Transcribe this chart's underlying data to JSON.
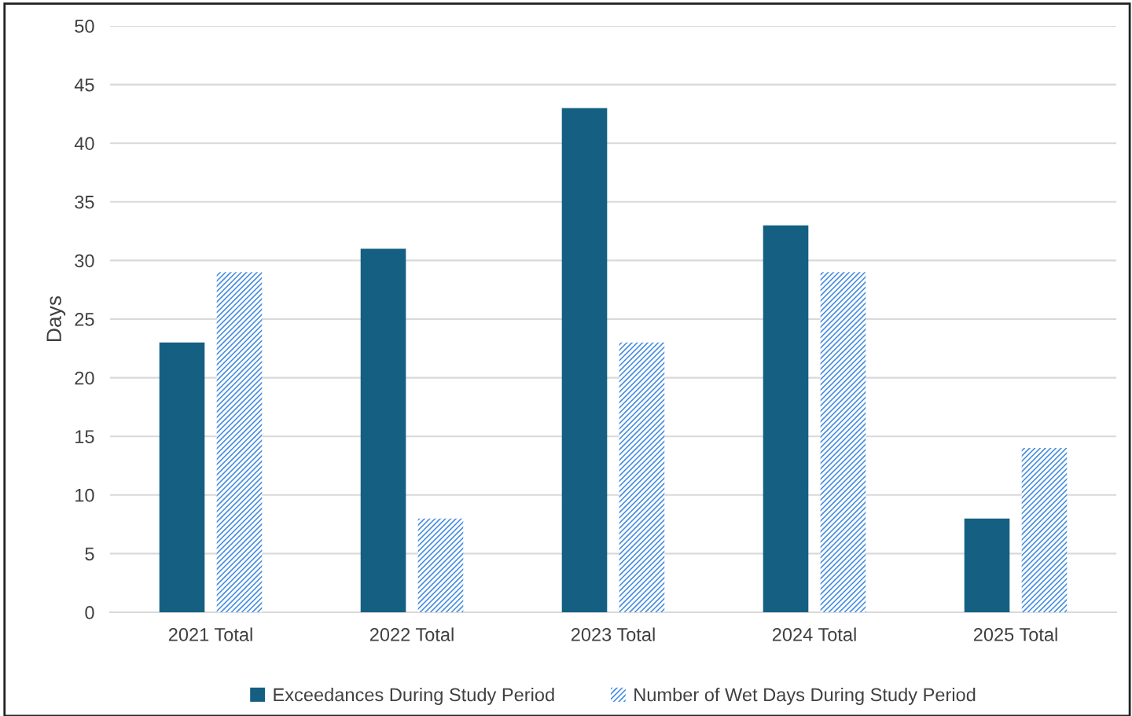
{
  "chart_data": {
    "type": "bar",
    "ylabel": "Days",
    "categories": [
      "2021 Total",
      "2022 Total",
      "2023 Total",
      "2024 Total",
      "2025 Total"
    ],
    "series": [
      {
        "name": "Exceedances During Study Period",
        "color": "#156082",
        "values": [
          23,
          31,
          43,
          33,
          8
        ]
      },
      {
        "name": "Number of Wet Days During Study Period",
        "color": "#4a8fe0",
        "values": [
          29,
          8,
          23,
          29,
          14
        ]
      }
    ],
    "ylim": [
      0,
      50
    ],
    "yticks": [
      0,
      5,
      10,
      15,
      20,
      25,
      30,
      35,
      40,
      45,
      50
    ],
    "grid": "y",
    "legend": "bottom"
  }
}
